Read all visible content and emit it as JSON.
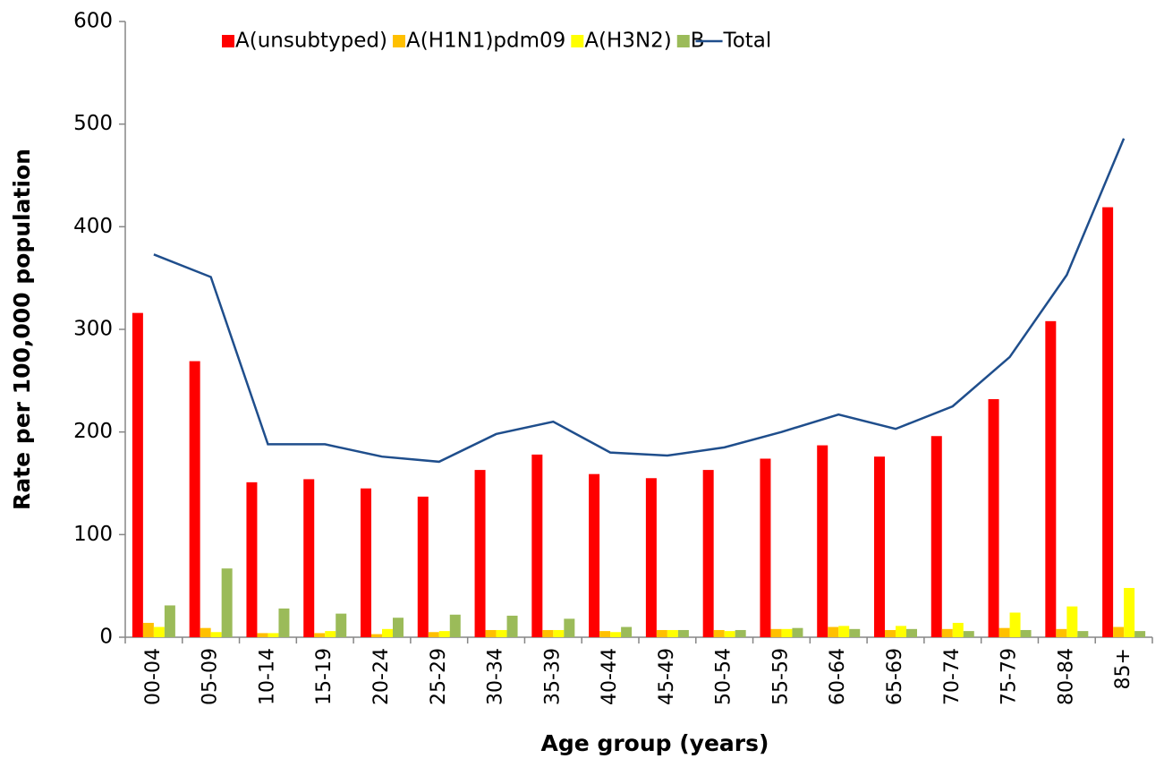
{
  "chart_data": {
    "type": "bar",
    "xlabel": "Age group (years)",
    "ylabel": "Rate per 100,000 population",
    "categories": [
      "00-04",
      "05-09",
      "10-14",
      "15-19",
      "20-24",
      "25-29",
      "30-34",
      "35-39",
      "40-44",
      "45-49",
      "50-54",
      "55-59",
      "60-64",
      "65-69",
      "70-74",
      "75-79",
      "80-84",
      "85+"
    ],
    "series": [
      {
        "name": "A(unsubtyped)",
        "color": "#ff0000",
        "type": "bar",
        "values": [
          316,
          269,
          151,
          154,
          145,
          137,
          163,
          178,
          159,
          155,
          163,
          174,
          187,
          176,
          196,
          232,
          308,
          419
        ]
      },
      {
        "name": "A(H1N1)pdm09",
        "color": "#ffc000",
        "type": "bar",
        "values": [
          14,
          9,
          4,
          4,
          3,
          5,
          7,
          7,
          6,
          7,
          7,
          8,
          10,
          7,
          8,
          9,
          8,
          10
        ]
      },
      {
        "name": "A(H3N2)",
        "color": "#ffff00",
        "type": "bar",
        "values": [
          10,
          5,
          4,
          6,
          8,
          6,
          7,
          7,
          5,
          7,
          6,
          8,
          11,
          11,
          14,
          24,
          30,
          48
        ]
      },
      {
        "name": "B",
        "color": "#9bbb59",
        "type": "bar",
        "values": [
          31,
          67,
          28,
          23,
          19,
          22,
          21,
          18,
          10,
          7,
          7,
          9,
          8,
          8,
          6,
          7,
          6,
          6
        ]
      },
      {
        "name": "Total",
        "color": "#1f4e8c",
        "type": "line",
        "values": [
          373,
          351,
          188,
          188,
          176,
          171,
          198,
          210,
          180,
          177,
          185,
          200,
          217,
          203,
          225,
          273,
          353,
          486
        ]
      }
    ],
    "ylim": [
      0,
      600
    ],
    "yticks": [
      0,
      100,
      200,
      300,
      400,
      500,
      600
    ],
    "legend": "top"
  }
}
